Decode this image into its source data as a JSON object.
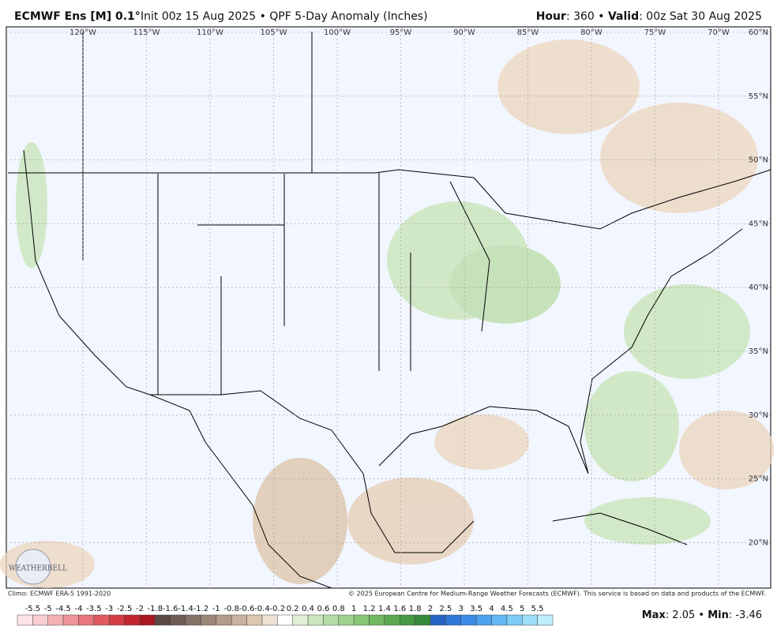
{
  "header": {
    "title_bold": "ECMWF Ens [M] 0.1°",
    "title_rest": "Init 00z 15 Aug 2025 • QPF 5-Day Anomaly (Inches)",
    "hour_label": "Hour",
    "hour_value": ": 360 • ",
    "valid_label": "Valid",
    "valid_value": ": 00z Sat 30 Aug 2025"
  },
  "map": {
    "longitudes": [
      "120°W",
      "115°W",
      "110°W",
      "105°W",
      "100°W",
      "95°W",
      "90°W",
      "85°W",
      "80°W",
      "75°W",
      "70°W"
    ],
    "latitudes": [
      "60°N",
      "55°N",
      "50°N",
      "45°N",
      "40°N",
      "35°N",
      "30°N",
      "25°N",
      "20°N"
    ],
    "logo": "WEATHERBELL"
  },
  "footer": {
    "climo": "Climo: ECMWF ERA-5 1991-2020",
    "copyright": "© 2025 European Centre for Medium-Range Weather Forecasts (ECMWF). This service is based on data and products of the ECMWF.",
    "max_label": "Max",
    "max_value": ": 2.05 • ",
    "min_label": "Min",
    "min_value": ": -3.46"
  },
  "colorbar": {
    "ticks": [
      -5.5,
      -5,
      -4.5,
      -4,
      -3.5,
      -3,
      -2.5,
      -2,
      -1.8,
      -1.6,
      -1.4,
      -1.2,
      -1,
      -0.8,
      -0.6,
      -0.4,
      -0.2,
      0.2,
      0.4,
      0.6,
      0.8,
      1,
      1.2,
      1.4,
      1.6,
      1.8,
      2,
      2.5,
      3,
      3.5,
      4,
      4.5,
      5,
      5.5
    ],
    "colors": [
      "#fde4e6",
      "#f9cdd0",
      "#f4b1b5",
      "#ee9499",
      "#e8777d",
      "#e05a61",
      "#d43d45",
      "#c3262e",
      "#a81820",
      "#5a4a43",
      "#6f5d54",
      "#857166",
      "#9b8678",
      "#b29c8b",
      "#c8b29f",
      "#dcc7b3",
      "#ece0d2",
      "#ffffff",
      "#dff0d6",
      "#c9e6bd",
      "#b3dca5",
      "#9dd18d",
      "#87c676",
      "#71b862",
      "#5ba951",
      "#479a44",
      "#368a3a",
      "#2563c4",
      "#2f78d8",
      "#3b8ce6",
      "#4ca2ef",
      "#62b7f4",
      "#7dccf7",
      "#9ddff9",
      "#bdeefc"
    ]
  }
}
